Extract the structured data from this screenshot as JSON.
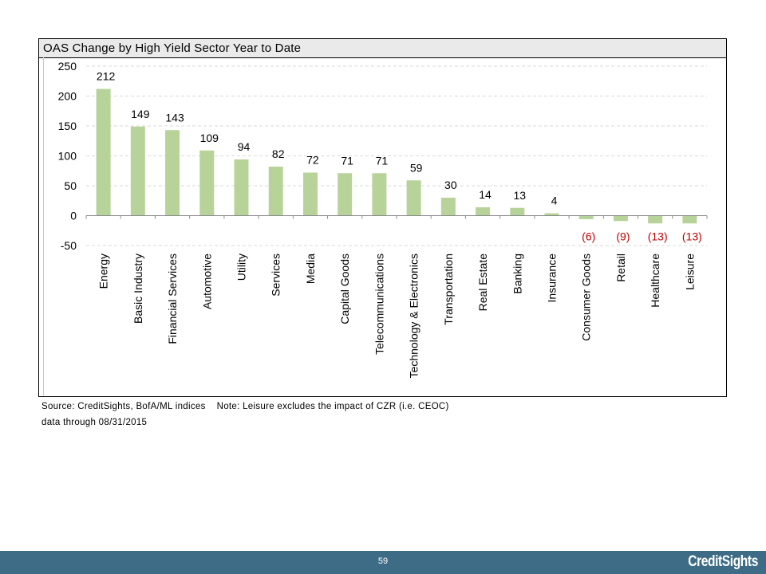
{
  "chart_data": {
    "type": "bar",
    "title": "OAS Change by High Yield Sector Year to Date",
    "categories": [
      "Energy",
      "Basic Industry",
      "Financial Services",
      "Automotive",
      "Utility",
      "Services",
      "Media",
      "Capital Goods",
      "Telecommunications",
      "Technology & Electronics",
      "Transportation",
      "Real Estate",
      "Banking",
      "Insurance",
      "Consumer Goods",
      "Retail",
      "Healthcare",
      "Leisure"
    ],
    "values": [
      212,
      149,
      143,
      109,
      94,
      82,
      72,
      71,
      71,
      59,
      30,
      14,
      13,
      4,
      -6,
      -9,
      -13,
      -13
    ],
    "data_labels": [
      "212",
      "149",
      "143",
      "109",
      "94",
      "82",
      "72",
      "71",
      "71",
      "59",
      "30",
      "14",
      "13",
      "4",
      "(6)",
      "(9)",
      "(13)",
      "(13)"
    ],
    "ylim": [
      -50,
      250
    ],
    "yticks": [
      -50,
      0,
      50,
      100,
      150,
      200,
      250
    ],
    "ytick_labels": [
      "-50",
      "0",
      "50",
      "100",
      "150",
      "200",
      "250"
    ],
    "grid": true,
    "bar_color": "#b8d39a",
    "negative_label_color": "#c00000",
    "xlabel": "",
    "ylabel": ""
  },
  "notes": {
    "source": "Source: CreditSights, BofA/ML indices",
    "note": "Note: Leisure excludes the impact of CZR (i.e. CEOC)",
    "data_through": "data through 08/31/2015"
  },
  "footer": {
    "page_number": "59",
    "brand": "CreditSights",
    "background_color": "#3e6c86"
  }
}
